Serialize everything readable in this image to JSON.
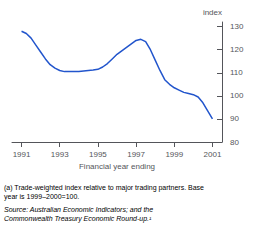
{
  "chart_data": {
    "type": "line",
    "xlabel": "Financial year ending",
    "ylabel": "index",
    "x": [
      1991.0,
      1991.25,
      1991.5,
      1991.75,
      1992.0,
      1992.25,
      1992.5,
      1992.75,
      1993.0,
      1993.25,
      1993.5,
      1993.75,
      1994.0,
      1994.25,
      1994.5,
      1994.75,
      1995.0,
      1995.25,
      1995.5,
      1995.75,
      1996.0,
      1996.25,
      1996.5,
      1996.75,
      1997.0,
      1997.25,
      1997.5,
      1997.75,
      1998.0,
      1998.25,
      1998.5,
      1998.75,
      1999.0,
      1999.25,
      1999.5,
      1999.75,
      2000.0,
      2000.25,
      2000.5,
      2000.75,
      2001.0
    ],
    "values": [
      128.0,
      127.0,
      125.0,
      122.0,
      119.0,
      116.0,
      113.5,
      112.0,
      111.0,
      110.5,
      110.5,
      110.5,
      110.5,
      110.8,
      111.0,
      111.2,
      111.5,
      112.5,
      114.0,
      116.0,
      118.0,
      119.5,
      121.0,
      122.5,
      124.0,
      124.5,
      123.5,
      120.0,
      115.5,
      111.0,
      107.0,
      105.0,
      103.5,
      102.5,
      101.5,
      101.0,
      100.5,
      99.5,
      97.0,
      93.5,
      90.0
    ],
    "color": "#2255CC",
    "xlim": [
      1990.5,
      2001.5
    ],
    "xticks": [
      1991,
      1993,
      1995,
      1997,
      1999,
      2001
    ],
    "ylim": [
      80,
      132
    ],
    "yticks": [
      80,
      90,
      100,
      110,
      120,
      130
    ],
    "grid": false,
    "footnotes": [
      "(a) Trade-weighted index relative to major trading partners. Base",
      "year is 1999–2000=100."
    ],
    "source": [
      "Source: Australian Economic Indicators; and the",
      "Commonwealth Treasury Economic Round-up.¹"
    ]
  }
}
